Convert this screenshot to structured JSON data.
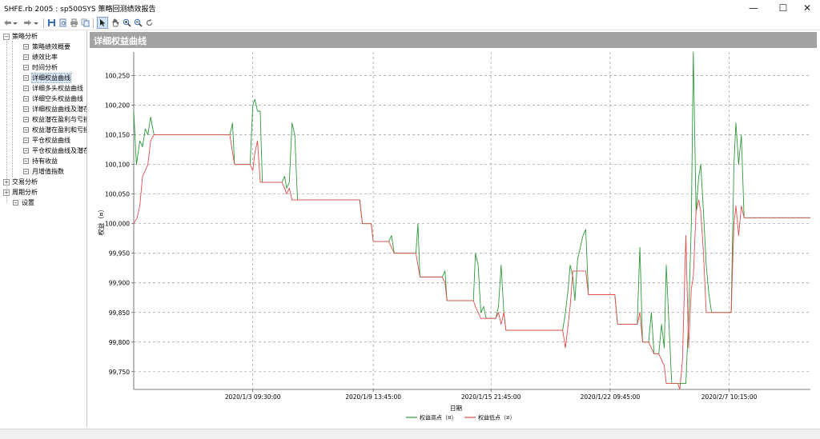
{
  "window": {
    "title": "SHFE.rb 2005 : sp500SYS 策略回测绩效报告",
    "controls": {
      "minimize": "—",
      "maximize": "☐",
      "close": "✕"
    }
  },
  "toolbar": {
    "icons": [
      "back-arrow-icon",
      "back-dropdown-icon",
      "forward-arrow-icon",
      "forward-dropdown-icon",
      "save-icon",
      "preview-icon",
      "print-icon",
      "copy-icon",
      "pointer-icon",
      "hand-icon",
      "zoom-in-icon",
      "zoom-out-icon",
      "refresh-icon"
    ]
  },
  "tree": {
    "items": [
      {
        "label": "策略分析",
        "level": 0,
        "expanded": true
      },
      {
        "label": "策略绩效概要",
        "level": 1
      },
      {
        "label": "绩效比率",
        "level": 1
      },
      {
        "label": "时间分析",
        "level": 1
      },
      {
        "label": "详细权益曲线",
        "level": 1,
        "selected": true
      },
      {
        "label": "详细多头权益曲线",
        "level": 1
      },
      {
        "label": "详细空头权益曲线",
        "level": 1
      },
      {
        "label": "详细权益曲线及潜在",
        "level": 1
      },
      {
        "label": "权益潜在盈利与亏损",
        "level": 1
      },
      {
        "label": "权益潜在盈利和亏损",
        "level": 1
      },
      {
        "label": "平仓权益曲线",
        "level": 1
      },
      {
        "label": "平仓权益曲线及潜在",
        "level": 1
      },
      {
        "label": "持有收益",
        "level": 1
      },
      {
        "label": "月增值指数",
        "level": 1
      },
      {
        "label": "交易分析",
        "level": 0,
        "expanded": false
      },
      {
        "label": "周期分析",
        "level": 0,
        "expanded": false
      },
      {
        "label": "设置",
        "level": 0,
        "leaf": true
      }
    ]
  },
  "panel": {
    "title": "详细权益曲线"
  },
  "chart_data": {
    "type": "line",
    "xlabel": "日期",
    "ylabel": "权益（¤）",
    "ylim": [
      99720,
      100290
    ],
    "yticks": [
      99750,
      99800,
      99850,
      99900,
      99950,
      100000,
      100050,
      100100,
      100150,
      100200,
      100250
    ],
    "ytick_labels": [
      "99,750",
      "99,800",
      "99,850",
      "99,900",
      "99,950",
      "100,000",
      "100,050",
      "100,100",
      "100,150",
      "100,200",
      "100,250"
    ],
    "x_range": [
      0,
      100
    ],
    "xticks": [
      17.6,
      35.4,
      52.8,
      70.4,
      88.0
    ],
    "xtick_labels": [
      "2020/1/3 09:30:00",
      "2020/1/9 13:45:00",
      "2020/1/15 21:45:00",
      "2020/1/22 09:45:00",
      "2020/2/7 10:15:00"
    ],
    "grid": true,
    "legend_position": "bottom-center",
    "series": [
      {
        "name": "权益高点（¤）",
        "color": "#2e9a3a",
        "points": [
          [
            0,
            100190
          ],
          [
            0.4,
            100100
          ],
          [
            0.9,
            100140
          ],
          [
            1.3,
            100130
          ],
          [
            1.7,
            100160
          ],
          [
            2.1,
            100150
          ],
          [
            2.5,
            100180
          ],
          [
            3.0,
            100150
          ],
          [
            14.2,
            100150
          ],
          [
            14.6,
            100170
          ],
          [
            14.9,
            100100
          ],
          [
            17.2,
            100100
          ],
          [
            17.6,
            100200
          ],
          [
            17.9,
            100210
          ],
          [
            18.3,
            100190
          ],
          [
            18.7,
            100190
          ],
          [
            19.0,
            100070
          ],
          [
            21.9,
            100070
          ],
          [
            22.3,
            100080
          ],
          [
            22.6,
            100060
          ],
          [
            23.0,
            100070
          ],
          [
            23.4,
            100170
          ],
          [
            23.8,
            100150
          ],
          [
            24.2,
            100040
          ],
          [
            33.4,
            100040
          ],
          [
            33.8,
            100000
          ],
          [
            35.1,
            100000
          ],
          [
            35.4,
            99970
          ],
          [
            37.7,
            99970
          ],
          [
            38.1,
            99980
          ],
          [
            38.5,
            99950
          ],
          [
            41.7,
            99950
          ],
          [
            42.0,
            100000
          ],
          [
            42.3,
            99910
          ],
          [
            45.6,
            99910
          ],
          [
            46.0,
            99920
          ],
          [
            46.3,
            99870
          ],
          [
            50.2,
            99870
          ],
          [
            50.5,
            99950
          ],
          [
            50.9,
            99930
          ],
          [
            51.3,
            99850
          ],
          [
            51.7,
            99860
          ],
          [
            52.1,
            99840
          ],
          [
            53.5,
            99840
          ],
          [
            53.9,
            99860
          ],
          [
            54.3,
            99930
          ],
          [
            54.7,
            99850
          ],
          [
            55.0,
            99820
          ],
          [
            63.4,
            99820
          ],
          [
            63.8,
            99850
          ],
          [
            64.2,
            99890
          ],
          [
            64.5,
            99930
          ],
          [
            64.9,
            99910
          ],
          [
            65.2,
            99870
          ],
          [
            65.6,
            99940
          ],
          [
            66.0,
            99960
          ],
          [
            66.4,
            99980
          ],
          [
            66.8,
            99990
          ],
          [
            67.2,
            99880
          ],
          [
            71.1,
            99880
          ],
          [
            71.5,
            99830
          ],
          [
            74.4,
            99830
          ],
          [
            74.8,
            99960
          ],
          [
            75.2,
            99800
          ],
          [
            76.1,
            99800
          ],
          [
            76.5,
            99850
          ],
          [
            76.9,
            99780
          ],
          [
            77.6,
            99780
          ],
          [
            78.0,
            99830
          ],
          [
            78.4,
            99790
          ],
          [
            78.7,
            99930
          ],
          [
            79.1,
            99830
          ],
          [
            79.5,
            99730
          ],
          [
            81.6,
            99730
          ],
          [
            82.0,
            99840
          ],
          [
            82.4,
            100000
          ],
          [
            82.7,
            100290
          ],
          [
            83.1,
            100020
          ],
          [
            83.5,
            100080
          ],
          [
            83.8,
            100100
          ],
          [
            84.2,
            100020
          ],
          [
            84.6,
            99930
          ],
          [
            85.0,
            99880
          ],
          [
            85.4,
            99850
          ],
          [
            88.3,
            99850
          ],
          [
            88.7,
            100100
          ],
          [
            89.0,
            100170
          ],
          [
            89.4,
            100100
          ],
          [
            89.8,
            100150
          ],
          [
            90.2,
            100010
          ],
          [
            100,
            100010
          ]
        ]
      },
      {
        "name": "权益低点（¤）",
        "color": "#e24b4b",
        "points": [
          [
            0,
            100000
          ],
          [
            0.5,
            100010
          ],
          [
            0.9,
            100030
          ],
          [
            1.3,
            100080
          ],
          [
            1.7,
            100090
          ],
          [
            2.1,
            100100
          ],
          [
            2.5,
            100140
          ],
          [
            3.0,
            100150
          ],
          [
            14.2,
            100150
          ],
          [
            14.6,
            100120
          ],
          [
            14.9,
            100100
          ],
          [
            17.2,
            100100
          ],
          [
            17.6,
            100090
          ],
          [
            17.9,
            100120
          ],
          [
            18.3,
            100140
          ],
          [
            18.7,
            100070
          ],
          [
            21.9,
            100070
          ],
          [
            22.3,
            100060
          ],
          [
            22.6,
            100050
          ],
          [
            23.0,
            100060
          ],
          [
            23.4,
            100040
          ],
          [
            33.4,
            100040
          ],
          [
            33.8,
            100000
          ],
          [
            35.1,
            100000
          ],
          [
            35.4,
            99970
          ],
          [
            37.7,
            99970
          ],
          [
            38.1,
            99960
          ],
          [
            38.5,
            99950
          ],
          [
            41.7,
            99950
          ],
          [
            42.0,
            99930
          ],
          [
            42.3,
            99910
          ],
          [
            45.6,
            99910
          ],
          [
            46.0,
            99900
          ],
          [
            46.3,
            99870
          ],
          [
            50.2,
            99870
          ],
          [
            50.5,
            99860
          ],
          [
            50.9,
            99850
          ],
          [
            51.3,
            99840
          ],
          [
            53.5,
            99840
          ],
          [
            53.9,
            99850
          ],
          [
            54.3,
            99830
          ],
          [
            54.7,
            99850
          ],
          [
            55.0,
            99820
          ],
          [
            63.4,
            99820
          ],
          [
            63.8,
            99790
          ],
          [
            64.2,
            99830
          ],
          [
            64.5,
            99860
          ],
          [
            64.9,
            99920
          ],
          [
            66.8,
            99920
          ],
          [
            67.2,
            99880
          ],
          [
            71.1,
            99880
          ],
          [
            71.5,
            99830
          ],
          [
            74.4,
            99830
          ],
          [
            74.8,
            99850
          ],
          [
            75.2,
            99800
          ],
          [
            76.1,
            99800
          ],
          [
            76.5,
            99790
          ],
          [
            76.9,
            99780
          ],
          [
            77.6,
            99780
          ],
          [
            78.0,
            99770
          ],
          [
            78.4,
            99760
          ],
          [
            78.7,
            99730
          ],
          [
            79.5,
            99730
          ],
          [
            80.4,
            99730
          ],
          [
            80.7,
            99720
          ],
          [
            81.1,
            99770
          ],
          [
            81.6,
            99980
          ],
          [
            82.0,
            99790
          ],
          [
            82.4,
            99890
          ],
          [
            82.7,
            99910
          ],
          [
            83.1,
            100020
          ],
          [
            83.5,
            100040
          ],
          [
            83.8,
            100020
          ],
          [
            84.2,
            99950
          ],
          [
            84.6,
            99850
          ],
          [
            88.3,
            99850
          ],
          [
            88.7,
            100000
          ],
          [
            89.0,
            100030
          ],
          [
            89.4,
            99980
          ],
          [
            89.8,
            100030
          ],
          [
            90.2,
            100010
          ],
          [
            100,
            100010
          ]
        ]
      }
    ]
  }
}
